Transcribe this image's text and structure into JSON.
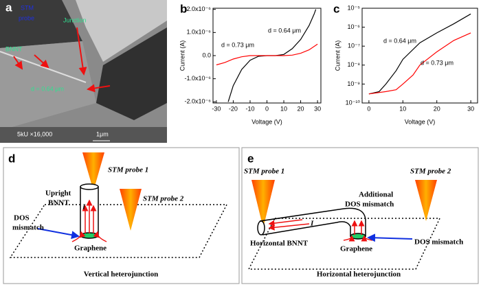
{
  "panel_a": {
    "panel": "a",
    "stm_probe": [
      "STM",
      "probe"
    ],
    "junction": "Junction",
    "bnnt": "BNNT",
    "distance": "d = 0.64 μm",
    "scale_info": "5kU  ×16,000",
    "scale_bar": "1μm"
  },
  "chart_data": [
    {
      "type": "line",
      "panel": "b",
      "xlabel": "Voltage (V)",
      "ylabel": "Current (A)",
      "xlim": [
        -32,
        32
      ],
      "xticks": [
        -30,
        -20,
        -10,
        0,
        10,
        20,
        30
      ],
      "ylim": [
        -2.05e-06,
        2.05e-06
      ],
      "yticks": [
        {
          "value": -2e-06,
          "label": "-2.0x10⁻⁶"
        },
        {
          "value": -1e-06,
          "label": "-1.0x10⁻⁶"
        },
        {
          "value": 0,
          "label": "0.0"
        },
        {
          "value": 1e-06,
          "label": "1.0x10⁻⁶"
        },
        {
          "value": 2e-06,
          "label": "2.0x10⁻⁶"
        }
      ],
      "log_y": false,
      "annotations": [
        "d = 0.64 μm",
        "d = 0.73 μm"
      ],
      "series": [
        {
          "color": "#000000",
          "x": [
            -23,
            -20,
            -15,
            -10,
            -5,
            0,
            5,
            10,
            15,
            20,
            25,
            28,
            29
          ],
          "values": [
            -2e-06,
            -1.3e-06,
            -6e-07,
            -2e-07,
            -3e-08,
            0,
            0,
            5e-08,
            3e-07,
            7e-07,
            1.3e-06,
            1.8e-06,
            2e-06
          ]
        },
        {
          "color": "#ff0000",
          "x": [
            -30,
            -25,
            -20,
            -15,
            -10,
            0,
            10,
            15,
            20,
            25,
            30
          ],
          "values": [
            -4e-07,
            -3e-07,
            -1.5e-07,
            -5e-08,
            0,
            0,
            0,
            2e-08,
            1e-07,
            2.5e-07,
            5e-07
          ]
        }
      ]
    },
    {
      "type": "line",
      "panel": "c",
      "xlabel": "Voltage (V)",
      "ylabel": "Current (A)",
      "xlim": [
        -2,
        32
      ],
      "xticks": [
        0,
        10,
        20,
        30
      ],
      "ylim": [
        1e-10,
        1e-05
      ],
      "yticks": [
        {
          "value": 1e-10,
          "label": "10⁻¹⁰"
        },
        {
          "value": 1e-09,
          "label": "10⁻⁹"
        },
        {
          "value": 1e-08,
          "label": "10⁻⁸"
        },
        {
          "value": 1e-07,
          "label": "10⁻⁷"
        },
        {
          "value": 1e-06,
          "label": "10⁻⁶"
        },
        {
          "value": 1e-05,
          "label": "10⁻⁵"
        }
      ],
      "log_y": true,
      "annotations": [
        "d = 0.64 μm",
        "d = 0.73 μm"
      ],
      "series": [
        {
          "color": "#000000",
          "x": [
            0,
            3,
            5,
            8,
            10,
            15,
            20,
            25,
            30
          ],
          "values": [
            3e-10,
            4e-10,
            1e-09,
            5e-09,
            2e-08,
            1.5e-07,
            5e-07,
            1.5e-06,
            5e-06
          ]
        },
        {
          "color": "#ff0000",
          "x": [
            0,
            5,
            8,
            10,
            13,
            15,
            20,
            25,
            30
          ],
          "values": [
            3e-10,
            4e-10,
            5e-10,
            1e-09,
            3e-09,
            1e-08,
            5e-08,
            2e-07,
            5e-07
          ]
        }
      ]
    }
  ],
  "panel_d": {
    "panel": "d",
    "probe1": "STM probe 1",
    "probe2": "STM probe 2",
    "bnnt": [
      "Upright",
      "BNNT"
    ],
    "current": "I",
    "dos": [
      "DOS",
      "mismatch"
    ],
    "graphene": "Graphene",
    "caption": "Vertical heterojunction"
  },
  "panel_e": {
    "panel": "e",
    "probe1": "STM probe 1",
    "probe2": "STM probe 2",
    "additional": [
      "Additional",
      "DOS mismatch"
    ],
    "current": "I",
    "bnnt": "Horizontal  BNNT",
    "graphene": "Graphene",
    "dos": "DOS mismatch",
    "caption": "Horizontal  heterojunction"
  }
}
